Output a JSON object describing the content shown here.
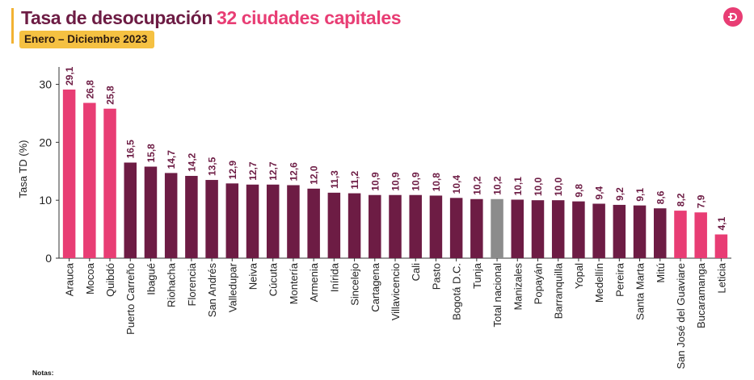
{
  "header": {
    "title_main": "Tasa de desocupación",
    "title_accent": "32 ciudades capitales",
    "period_badge": "Enero – Diciembre  2023",
    "logo_icon": "dane-logo-icon",
    "logo_color": "#e83d74"
  },
  "footer": {
    "notes_title": "Notas:"
  },
  "colors": {
    "highlight": "#e83d74",
    "regular": "#6d1c44",
    "national": "#8c8c8c",
    "value_label": "#6d1c44",
    "badge": "#f5c142"
  },
  "chart_data": {
    "type": "bar",
    "title": "",
    "xlabel": "",
    "ylabel": "Tasa TD (%)",
    "ylim": [
      0,
      33
    ],
    "yticks": [
      0,
      10,
      20,
      30
    ],
    "grid": false,
    "legend": "none",
    "categories": [
      "Arauca",
      "Mocoa",
      "Quibdó",
      "Puerto Carreño",
      "Ibagué",
      "Riohacha",
      "Florencia",
      "San Andrés",
      "Valledupar",
      "Neiva",
      "Cúcuta",
      "Montería",
      "Armenia",
      "Inírida",
      "Sincelejo",
      "Cartagena",
      "Villavicencio",
      "Cali",
      "Pasto",
      "Bogotá D.C.",
      "Tunja",
      "Total nacional",
      "Manizales",
      "Popayán",
      "Barranquilla",
      "Yopal",
      "Medellín",
      "Pereira",
      "Santa Marta",
      "Mitú",
      "San José del Guaviare",
      "Bucaramanga",
      "Leticia"
    ],
    "values": [
      29.1,
      26.8,
      25.8,
      16.5,
      15.8,
      14.7,
      14.2,
      13.5,
      12.9,
      12.7,
      12.7,
      12.6,
      12.0,
      11.3,
      11.2,
      10.9,
      10.9,
      10.9,
      10.8,
      10.4,
      10.2,
      10.2,
      10.1,
      10.0,
      10.0,
      9.8,
      9.4,
      9.2,
      9.1,
      8.6,
      8.2,
      7.9,
      4.1
    ],
    "value_labels": [
      "29,1",
      "26,8",
      "25,8",
      "16,5",
      "15,8",
      "14,7",
      "14,2",
      "13,5",
      "12,9",
      "12,7",
      "12,7",
      "12,6",
      "12,0",
      "11,3",
      "11,2",
      "10,9",
      "10,9",
      "10,9",
      "10,8",
      "10,4",
      "10,2",
      "10,2",
      "10,1",
      "10,0",
      "10,0",
      "9,8",
      "9,4",
      "9,2",
      "9,1",
      "8,6",
      "8,2",
      "7,9",
      "4,1"
    ],
    "bar_color_groups": [
      "highlight",
      "highlight",
      "highlight",
      "regular",
      "regular",
      "regular",
      "regular",
      "regular",
      "regular",
      "regular",
      "regular",
      "regular",
      "regular",
      "regular",
      "regular",
      "regular",
      "regular",
      "regular",
      "regular",
      "regular",
      "regular",
      "national",
      "regular",
      "regular",
      "regular",
      "regular",
      "regular",
      "regular",
      "regular",
      "regular",
      "highlight",
      "highlight",
      "highlight"
    ]
  }
}
